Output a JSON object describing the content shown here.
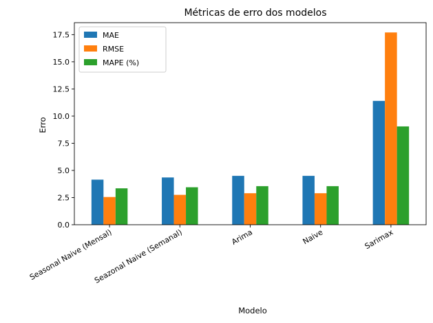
{
  "chart_data": {
    "type": "bar",
    "title": "Métricas de erro dos modelos",
    "xlabel": "Modelo",
    "ylabel": "Erro",
    "categories": [
      "Seasonal Naive (Mensal)",
      "Seazonal Naive (Semanal)",
      "Arima",
      "Naive",
      "Sarimax"
    ],
    "series": [
      {
        "name": "MAE",
        "color": "#1f77b4",
        "values": [
          4.15,
          4.35,
          4.5,
          4.5,
          11.4
        ]
      },
      {
        "name": "RMSE",
        "color": "#ff7f0e",
        "values": [
          2.55,
          2.75,
          2.9,
          2.9,
          17.7
        ]
      },
      {
        "name": "MAPE (%)",
        "color": "#2ca02c",
        "values": [
          3.35,
          3.45,
          3.55,
          3.55,
          9.05
        ]
      }
    ],
    "ylim": [
      0,
      18.6
    ],
    "yticks": [
      "0.0",
      "2.5",
      "5.0",
      "7.5",
      "10.0",
      "12.5",
      "15.0",
      "17.5"
    ],
    "grid": false,
    "legend_position": "top-left"
  }
}
